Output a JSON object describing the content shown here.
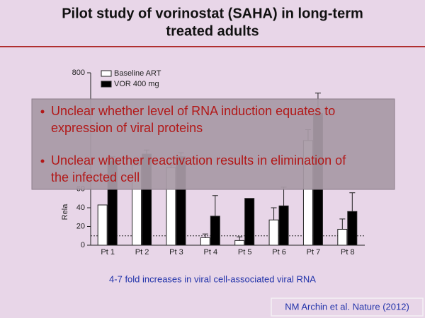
{
  "slide": {
    "title": [
      "Pilot study of vorinostat (SAHA) in long-term",
      "treated adults"
    ],
    "bullets": [
      [
        "Unclear whether level of RNA induction equates to",
        "expression of viral proteins"
      ],
      [
        "Unclear whether reactivation results in elimination of",
        "the infected cell"
      ]
    ],
    "caption": "4-7 fold increases in viral cell-associated viral  RNA",
    "citation": "NM Archin et al. Nature (2012)"
  },
  "chart_data": {
    "type": "bar",
    "y_label": "Rela",
    "categories": [
      "Pt 1",
      "Pt 2",
      "Pt 3",
      "Pt 4",
      "Pt 5",
      "Pt 6",
      "Pt 7",
      "Pt 8"
    ],
    "series": [
      {
        "name": "Baseline ART",
        "color": "#ffffff",
        "values": [
          43,
          120,
          100,
          8,
          5,
          27,
          300,
          17
        ],
        "errors": [
          null,
          20,
          20,
          4,
          4,
          13,
          80,
          11
        ]
      },
      {
        "name": "VOR 400 mg",
        "color": "#000000",
        "values": [
          150,
          200,
          180,
          31,
          50,
          42,
          500,
          36
        ],
        "errors": [
          30,
          30,
          30,
          22,
          null,
          20,
          150,
          20
        ]
      }
    ],
    "ylim": [
      0,
      800
    ],
    "yticks": [
      0,
      20,
      40,
      60,
      800
    ],
    "reference_line": 10,
    "axis_break": 80,
    "legend": "top-left"
  }
}
